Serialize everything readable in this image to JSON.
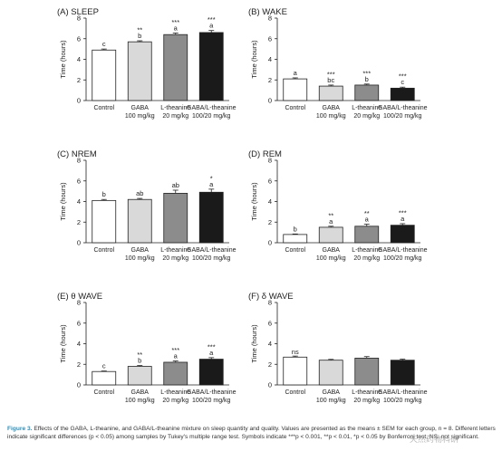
{
  "chart_data": [
    {
      "type": "bar",
      "panel_label": "(A)",
      "title": "SLEEP",
      "ylabel": "Time (hours)",
      "ylim": [
        0,
        8
      ],
      "yticks": [
        "0",
        "2",
        "4",
        "6",
        "8"
      ],
      "categories": [
        "Control",
        "GABA",
        "L-theanine",
        "GABA/L-theanine"
      ],
      "doses": [
        "",
        "100 mg/kg",
        "20 mg/kg",
        "100/20 mg/kg"
      ],
      "values": [
        4.9,
        5.7,
        6.4,
        6.6
      ],
      "errors": [
        0.1,
        0.1,
        0.15,
        0.2
      ],
      "letters": [
        "c",
        "b",
        "a",
        "a"
      ],
      "stars": [
        "",
        "**",
        "***",
        "***"
      ]
    },
    {
      "type": "bar",
      "panel_label": "(B)",
      "title": "WAKE",
      "ylabel": "Time (hours)",
      "ylim": [
        0,
        8
      ],
      "yticks": [
        "0",
        "2",
        "4",
        "6",
        "8"
      ],
      "categories": [
        "Control",
        "GABA",
        "L-theanine",
        "GABA/L-theanine"
      ],
      "doses": [
        "",
        "100 mg/kg",
        "20 mg/kg",
        "100/20 mg/kg"
      ],
      "values": [
        2.1,
        1.4,
        1.5,
        1.2
      ],
      "errors": [
        0.1,
        0.1,
        0.1,
        0.1
      ],
      "letters": [
        "a",
        "bc",
        "b",
        "c"
      ],
      "stars": [
        "",
        "***",
        "***",
        "***"
      ]
    },
    {
      "type": "bar",
      "panel_label": "(C)",
      "title": "NREM",
      "ylabel": "Time (hours)",
      "ylim": [
        0,
        8
      ],
      "yticks": [
        "0",
        "2",
        "4",
        "6",
        "8"
      ],
      "categories": [
        "Control",
        "GABA",
        "L-theanine",
        "GABA/L-theanine"
      ],
      "doses": [
        "",
        "100 mg/kg",
        "20 mg/kg",
        "100/20 mg/kg"
      ],
      "values": [
        4.1,
        4.2,
        4.8,
        4.9
      ],
      "errors": [
        0.1,
        0.1,
        0.3,
        0.3
      ],
      "letters": [
        "b",
        "ab",
        "ab",
        "a"
      ],
      "stars": [
        "",
        "",
        "",
        "*"
      ]
    },
    {
      "type": "bar",
      "panel_label": "(D)",
      "title": "REM",
      "ylabel": "Time (hours)",
      "ylim": [
        0,
        8
      ],
      "yticks": [
        "0",
        "2",
        "4",
        "6",
        "8"
      ],
      "categories": [
        "Control",
        "GABA",
        "L-theanine",
        "GABA/L-theanine"
      ],
      "doses": [
        "",
        "100 mg/kg",
        "20 mg/kg",
        "100/20 mg/kg"
      ],
      "values": [
        0.8,
        1.5,
        1.6,
        1.7
      ],
      "errors": [
        0.05,
        0.1,
        0.2,
        0.15
      ],
      "letters": [
        "b",
        "a",
        "a",
        "a"
      ],
      "stars": [
        "",
        "**",
        "**",
        "***"
      ]
    },
    {
      "type": "bar",
      "panel_label": "(E)",
      "title": "θ WAVE",
      "ylabel": "Time (hours)",
      "ylim": [
        0,
        8
      ],
      "yticks": [
        "0",
        "2",
        "4",
        "6",
        "8"
      ],
      "categories": [
        "Control",
        "GABA",
        "L-theanine",
        "GABA/L-theanine"
      ],
      "doses": [
        "",
        "100 mg/kg",
        "20 mg/kg",
        "100/20 mg/kg"
      ],
      "values": [
        1.3,
        1.8,
        2.2,
        2.5
      ],
      "errors": [
        0.05,
        0.08,
        0.12,
        0.15
      ],
      "letters": [
        "c",
        "b",
        "a",
        "a"
      ],
      "stars": [
        "",
        "**",
        "***",
        "***"
      ]
    },
    {
      "type": "bar",
      "panel_label": "(F)",
      "title": "δ WAVE",
      "ylabel": "Time (hours)",
      "ylim": [
        0,
        8
      ],
      "yticks": [
        "0",
        "2",
        "4",
        "6",
        "8"
      ],
      "categories": [
        "Control",
        "GABA",
        "L-theanine",
        "GABA/L-theanine"
      ],
      "doses": [
        "",
        "100 mg/kg",
        "20 mg/kg",
        "100/20 mg/kg"
      ],
      "values": [
        2.7,
        2.4,
        2.6,
        2.4
      ],
      "errors": [
        0.1,
        0.08,
        0.15,
        0.1
      ],
      "letters": [
        "",
        "",
        "",
        ""
      ],
      "stars": [
        "ns",
        "",
        "",
        ""
      ]
    }
  ],
  "colors": {
    "bar_fills": [
      "#ffffff",
      "#d9d9d9",
      "#8c8c8c",
      "#1a1a1a"
    ],
    "figure_label": "#2e8fb8"
  },
  "caption": {
    "label": "Figure 3.",
    "text": "Effects of the GABA, L-theanine, and GABA/L-theanine mixture on sleep quantity and quality. Values are presented as the means ± SEM for each group, n = 8. Different letters indicate significant differences (p < 0.05) among samples by Tukey's multiple range test. Symbols indicate ***p < 0.001, **p < 0.01, *p < 0.05 by Bonferroni test. NS: not significant."
  },
  "watermark": "天然药物科研"
}
